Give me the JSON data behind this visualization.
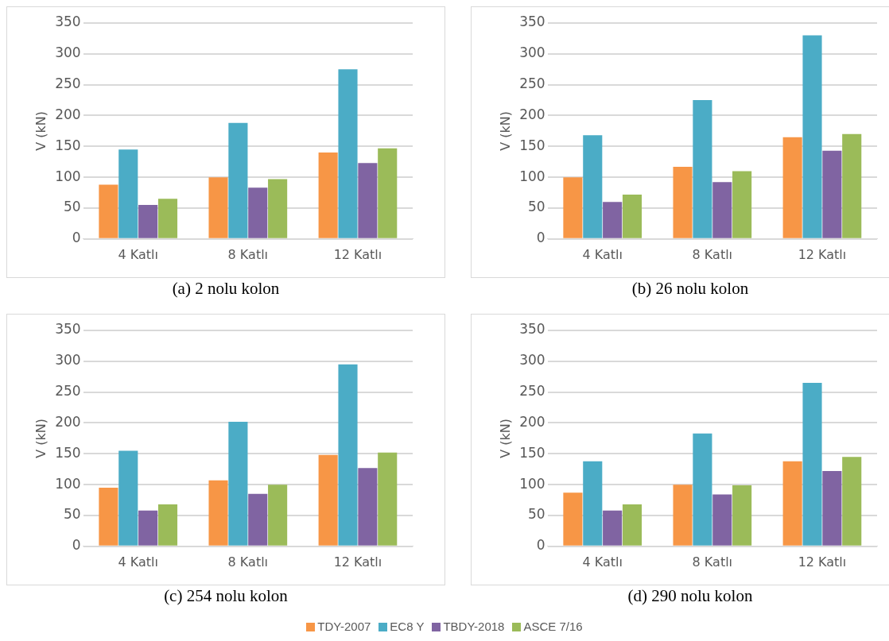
{
  "chart_data": [
    {
      "type": "bar",
      "title": "(a) 2 nolu kolon",
      "ylabel": "V (kN)",
      "categories": [
        "4 Katlı",
        "8 Katlı",
        "12 Katlı"
      ],
      "ylim": [
        0,
        350
      ],
      "yticks": [
        0,
        50,
        100,
        150,
        200,
        250,
        300,
        350
      ],
      "grid": "y",
      "legend": "bottom",
      "series": [
        {
          "name": "TDY-2007",
          "color": "#f79646",
          "values": [
            88,
            100,
            140
          ]
        },
        {
          "name": "EC8 Y",
          "color": "#4bacc6",
          "values": [
            145,
            188,
            275
          ]
        },
        {
          "name": "TBDY-2018",
          "color": "#8064a2",
          "values": [
            55,
            83,
            123
          ]
        },
        {
          "name": "ASCE 7/16",
          "color": "#9bbb59",
          "values": [
            65,
            97,
            147
          ]
        }
      ]
    },
    {
      "type": "bar",
      "title": "(b) 26 nolu kolon",
      "ylabel": "V (kN)",
      "categories": [
        "4 Katlı",
        "8 Katlı",
        "12 Katlı"
      ],
      "ylim": [
        0,
        350
      ],
      "yticks": [
        0,
        50,
        100,
        150,
        200,
        250,
        300,
        350
      ],
      "grid": "y",
      "series": [
        {
          "color": "#f79646",
          "values": [
            100,
            117,
            165
          ]
        },
        {
          "color": "#4bacc6",
          "values": [
            168,
            225,
            330
          ]
        },
        {
          "color": "#8064a2",
          "values": [
            60,
            92,
            143
          ]
        },
        {
          "color": "#9bbb59",
          "values": [
            72,
            110,
            170
          ]
        }
      ]
    },
    {
      "type": "bar",
      "title": "(c) 254 nolu kolon",
      "ylabel": "V (kN)",
      "categories": [
        "4 Katlı",
        "8 Katlı",
        "12 Katlı"
      ],
      "ylim": [
        0,
        350
      ],
      "yticks": [
        0,
        50,
        100,
        150,
        200,
        250,
        300,
        350
      ],
      "grid": "y",
      "series": [
        {
          "color": "#f79646",
          "values": [
            95,
            107,
            148
          ]
        },
        {
          "color": "#4bacc6",
          "values": [
            155,
            202,
            295
          ]
        },
        {
          "color": "#8064a2",
          "values": [
            58,
            85,
            127
          ]
        },
        {
          "color": "#9bbb59",
          "values": [
            68,
            100,
            152
          ]
        }
      ]
    },
    {
      "type": "bar",
      "title": "(d) 290 nolu kolon",
      "ylabel": "V (kN)",
      "categories": [
        "4 Katlı",
        "8 Katlı",
        "12 Katlı"
      ],
      "ylim": [
        0,
        350
      ],
      "yticks": [
        0,
        50,
        100,
        150,
        200,
        250,
        300,
        350
      ],
      "grid": "y",
      "series": [
        {
          "color": "#f79646",
          "values": [
            87,
            100,
            138
          ]
        },
        {
          "color": "#4bacc6",
          "values": [
            138,
            183,
            265
          ]
        },
        {
          "color": "#8064a2",
          "values": [
            58,
            84,
            122
          ]
        },
        {
          "color": "#9bbb59",
          "values": [
            68,
            99,
            145
          ]
        }
      ]
    }
  ]
}
